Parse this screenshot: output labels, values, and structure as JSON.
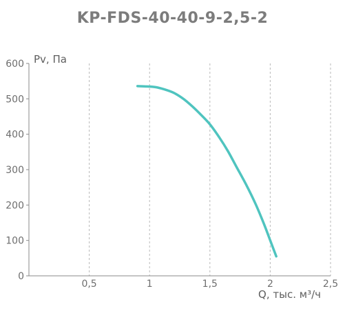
{
  "chart_data": {
    "type": "line",
    "title": "KP-FDS-40-40-9-2,5-2",
    "xlabel": "Q, тыс. м³/ч",
    "ylabel": "Pv, Па",
    "xlim": [
      0,
      2.5
    ],
    "ylim": [
      0,
      600
    ],
    "x_ticks": [
      0.5,
      1,
      1.5,
      2,
      2.5
    ],
    "x_tick_labels": [
      "0,5",
      "1",
      "1,5",
      "2",
      "2,5"
    ],
    "y_ticks": [
      0,
      100,
      200,
      300,
      400,
      500,
      600
    ],
    "y_tick_labels": [
      "0",
      "100",
      "200",
      "300",
      "400",
      "500",
      "600"
    ],
    "grid": "vertical dashed",
    "line_color": "#4fc4bf",
    "series": [
      {
        "name": "",
        "x": [
          0.9,
          0.98,
          1.05,
          1.12,
          1.2,
          1.28,
          1.35,
          1.42,
          1.5,
          1.58,
          1.65,
          1.72,
          1.8,
          1.88,
          1.95,
          2.0,
          2.05
        ],
        "y": [
          536,
          535,
          533,
          527,
          517,
          500,
          480,
          457,
          428,
          390,
          352,
          308,
          258,
          202,
          145,
          100,
          55
        ]
      }
    ]
  }
}
